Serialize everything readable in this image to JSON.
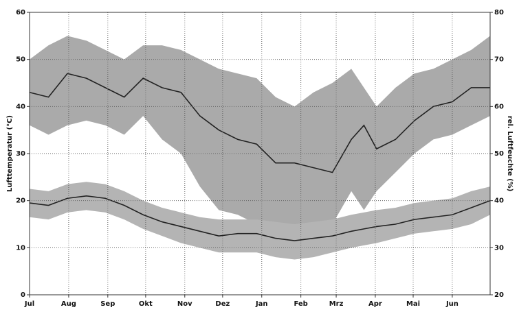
{
  "chart_data": {
    "type": "band-line",
    "y_label": "Lufttemperatur (°C)",
    "y2_label": "rel. Luftfeuchte (%)",
    "xlim": [
      0,
      365
    ],
    "xticks": [
      {
        "value": 0,
        "label": "Jul"
      },
      {
        "value": 31,
        "label": "Aug"
      },
      {
        "value": 62,
        "label": "Sep"
      },
      {
        "value": 92,
        "label": "Okt"
      },
      {
        "value": 123,
        "label": "Nov"
      },
      {
        "value": 153,
        "label": "Dez"
      },
      {
        "value": 184,
        "label": "Jan"
      },
      {
        "value": 215,
        "label": "Feb"
      },
      {
        "value": 243,
        "label": "Mrz"
      },
      {
        "value": 274,
        "label": "Apr"
      },
      {
        "value": 304,
        "label": "Mai"
      },
      {
        "value": 335,
        "label": "Jun"
      }
    ],
    "ylim": [
      0,
      60
    ],
    "yticks": [
      0,
      10,
      20,
      30,
      40,
      50,
      60
    ],
    "y2lim": [
      20,
      80
    ],
    "y2ticks": [
      20,
      30,
      40,
      50,
      60,
      70,
      80
    ],
    "grid": true,
    "x": [
      0,
      15,
      30,
      45,
      60,
      75,
      90,
      105,
      120,
      135,
      150,
      165,
      180,
      195,
      210,
      225,
      240,
      255,
      265,
      275,
      290,
      305,
      320,
      335,
      350,
      365
    ],
    "series": [
      {
        "axis": "y2",
        "color": "#222222",
        "band_color": "#aaaaaa",
        "values": [
          63,
          62,
          67,
          66,
          64,
          62,
          66,
          64,
          63,
          58,
          55,
          53,
          52,
          48,
          48,
          47,
          46,
          53,
          56,
          51,
          53,
          57,
          60,
          61,
          64,
          64
        ],
        "upper": [
          70,
          73,
          75,
          74,
          72,
          70,
          73,
          73,
          72,
          70,
          68,
          67,
          66,
          62,
          60,
          63,
          65,
          68,
          64,
          60,
          64,
          67,
          68,
          70,
          72,
          75
        ],
        "lower": [
          56,
          54,
          56,
          57,
          56,
          54,
          58,
          53,
          50,
          43,
          38,
          37,
          35,
          34,
          34,
          34,
          35,
          42,
          38,
          42,
          46,
          50,
          53,
          54,
          56,
          58
        ]
      },
      {
        "axis": "y",
        "color": "#222222",
        "band_color": "#b4b4b4",
        "values": [
          19.5,
          19,
          20.5,
          21,
          20.5,
          19,
          17,
          15.5,
          14.5,
          13.5,
          12.5,
          13,
          13,
          12,
          11.5,
          12,
          12.5,
          13.5,
          14,
          14.5,
          15,
          16,
          16.5,
          17,
          18.5,
          20
        ],
        "upper": [
          22.5,
          22,
          23.5,
          24,
          23.5,
          22,
          20,
          18.5,
          17.5,
          16.5,
          16,
          16,
          16,
          15.5,
          15,
          15.5,
          16,
          17,
          17.5,
          18,
          18.5,
          19.5,
          20,
          20.5,
          22,
          23
        ],
        "lower": [
          16.5,
          16,
          17.5,
          18,
          17.5,
          16,
          14,
          12.5,
          11,
          10,
          9,
          9,
          9,
          8,
          7.5,
          8,
          9,
          10,
          10.5,
          11,
          12,
          13,
          13.5,
          14,
          15,
          17
        ]
      }
    ]
  }
}
